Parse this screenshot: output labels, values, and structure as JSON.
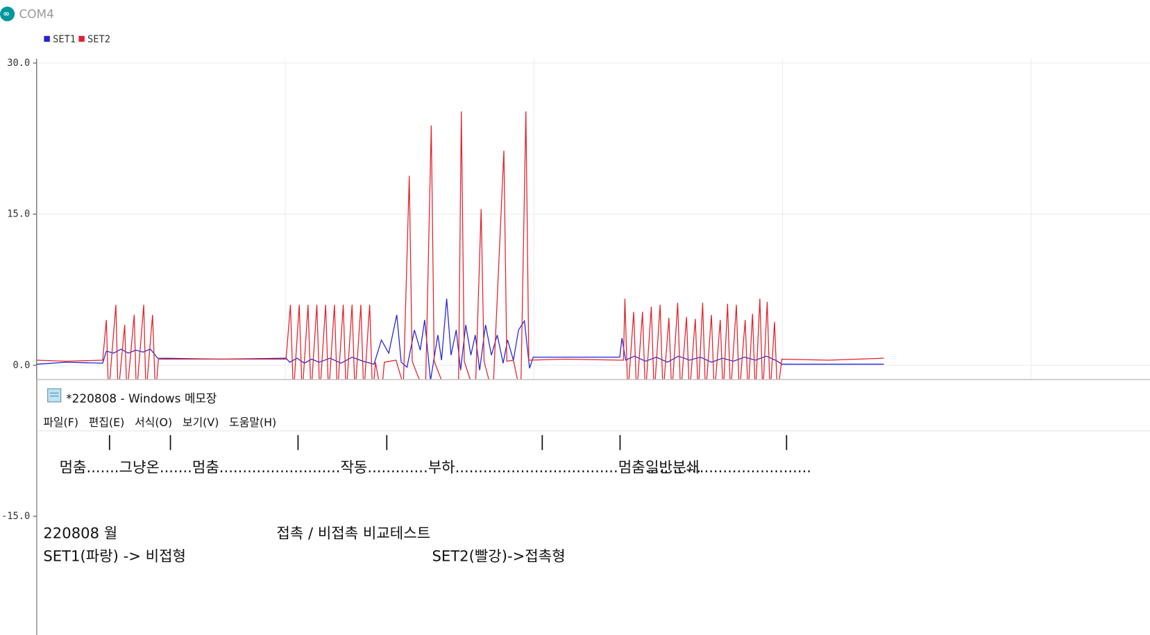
{
  "window_title": "COM4",
  "chart_data": {
    "type": "line",
    "xlim": [
      0,
      1518
    ],
    "ylim": [
      -26.8,
      30
    ],
    "yticks": [
      {
        "value": 30,
        "label": "30.0"
      },
      {
        "value": 15,
        "label": "15.0"
      },
      {
        "value": 0,
        "label": "0.0"
      },
      {
        "value": -15,
        "label": "-15.0"
      }
    ],
    "grid": true,
    "series": [
      {
        "name": "SET1",
        "color": "#2323d6",
        "x": [
          0,
          40,
          90,
          95,
          105,
          115,
          125,
          135,
          145,
          155,
          165,
          250,
          340,
          345,
          355,
          365,
          375,
          385,
          400,
          415,
          430,
          445,
          460,
          470,
          480,
          491,
          497,
          505,
          515,
          523,
          529,
          537,
          547,
          552,
          559,
          565,
          572,
          578,
          585,
          592,
          598,
          604,
          612,
          620,
          628,
          636,
          642,
          650,
          657,
          665,
          672,
          677,
          720,
          795,
          798,
          803,
          815,
          830,
          845,
          860,
          875,
          890,
          905,
          920,
          935,
          950,
          965,
          980,
          995,
          1010,
          1016,
          1080,
          1155
        ],
        "values": [
          0.1,
          0.3,
          0.2,
          1.4,
          1.2,
          1.6,
          1.2,
          1.5,
          1.3,
          1.6,
          0.7,
          0.6,
          0.7,
          0.3,
          0.7,
          0.2,
          0.6,
          0.3,
          0.7,
          0.2,
          0.8,
          0.4,
          0.1,
          2.5,
          1.2,
          5,
          0.3,
          -0.2,
          3.5,
          1.5,
          4.5,
          -1.5,
          3,
          0.5,
          6.6,
          1,
          3.5,
          -0.5,
          4,
          1,
          3,
          -0.5,
          4,
          1,
          3,
          0.2,
          2.5,
          0.5,
          3.5,
          4.4,
          -0.3,
          0.8,
          0.8,
          0.8,
          2.7,
          0.5,
          0.9,
          0.4,
          0.8,
          0.3,
          0.9,
          0.5,
          0.8,
          0.3,
          0.7,
          0.4,
          0.8,
          0.5,
          0.9,
          0.4,
          0.1,
          0.1,
          0.1
        ]
      },
      {
        "name": "SET2",
        "color": "#e3212b",
        "x": [
          0,
          40,
          90,
          95,
          98,
          108,
          111,
          120,
          123,
          133,
          136,
          146,
          149,
          158,
          162,
          166,
          250,
          340,
          346,
          350,
          358,
          362,
          370,
          374,
          382,
          386,
          394,
          398,
          406,
          410,
          418,
          422,
          430,
          434,
          442,
          446,
          454,
          458,
          462,
          470,
          474,
          490,
          500,
          508,
          512,
          530,
          538,
          542,
          560,
          575,
          579,
          583,
          598,
          606,
          610,
          622,
          637,
          641,
          650,
          660,
          667,
          671,
          720,
          800,
          802,
          806,
          814,
          818,
          826,
          830,
          838,
          842,
          850,
          854,
          862,
          866,
          874,
          878,
          886,
          890,
          898,
          902,
          908,
          912,
          920,
          924,
          932,
          936,
          942,
          946,
          954,
          958,
          966,
          970,
          976,
          980,
          986,
          990,
          996,
          1000,
          1006,
          1010,
          1016,
          1080,
          1155
        ],
        "values": [
          0.5,
          0.4,
          0.5,
          4.5,
          -3,
          6,
          -3,
          4,
          -3,
          5,
          -3,
          6,
          -3,
          5,
          -3,
          0.6,
          0.6,
          0.6,
          6,
          -3,
          6,
          -3,
          6,
          -3,
          6,
          -3,
          6,
          -3,
          6,
          -3,
          6,
          -3,
          6,
          -3,
          6,
          -3,
          6,
          -3,
          0.3,
          -3,
          0.3,
          0.5,
          -2,
          18.8,
          0.4,
          -3,
          23.8,
          0.4,
          -3,
          -3,
          25.2,
          0.4,
          -3,
          15.5,
          0.4,
          -3,
          21.3,
          0.4,
          0.5,
          -3,
          25.2,
          0.5,
          0.6,
          0.5,
          6.6,
          -3,
          5.3,
          -3,
          5.3,
          -3,
          5.8,
          -3,
          6,
          -3,
          4.7,
          -3,
          6.2,
          -3,
          4.8,
          -3,
          4.6,
          -3,
          6.2,
          -3,
          5,
          -3,
          4.5,
          -3,
          6.1,
          -3,
          6,
          -3,
          4.5,
          -3,
          5.1,
          -3,
          6.6,
          -3,
          6.3,
          -3,
          4.3,
          -3,
          0.6,
          0.5,
          0.7
        ]
      }
    ]
  },
  "notepad": {
    "title": "*220808 - Windows 메모장",
    "menu": [
      "파일(F)",
      "편집(E)",
      "서식(O)",
      "보기(V)",
      "도움말(H)"
    ],
    "markers": [
      "|",
      "|",
      "|",
      "|",
      "|",
      "|",
      "|"
    ],
    "phases": [
      "멈춤.......그냥온.......멈춤..........................작동.............부하...................................멈춤............",
      "일반분쇄........................"
    ],
    "line4": [
      "220808 월",
      "접촉 / 비접촉 비교테스트"
    ],
    "line5": [
      "SET1(파랑) -> 비접형",
      "SET2(빨강)->접촉형"
    ]
  }
}
